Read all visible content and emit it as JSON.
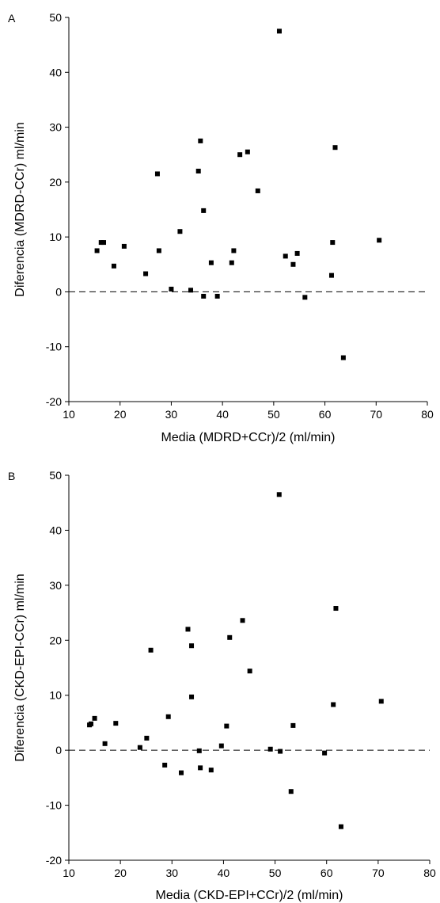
{
  "chart_data": [
    {
      "type": "scatter",
      "panel_letter": "A",
      "xlabel": "Media (MDRD+CCr)/2 (ml/min)",
      "ylabel": "Diferencia (MDRD-CCr) ml/min",
      "xlim": [
        10,
        80
      ],
      "ylim": [
        -20,
        50
      ],
      "x_ticks": [
        "10",
        "20",
        "30",
        "40",
        "50",
        "60",
        "70",
        "80"
      ],
      "y_ticks": [
        "-20",
        "-10",
        "0",
        "10",
        "20",
        "30",
        "40",
        "50"
      ],
      "reference_line": {
        "y": 0,
        "style": "dashed"
      },
      "marker_color": "#000000",
      "points": [
        [
          15.5,
          7.5
        ],
        [
          16.3,
          9.0
        ],
        [
          16.8,
          9.0
        ],
        [
          18.8,
          4.7
        ],
        [
          20.8,
          8.3
        ],
        [
          25.0,
          3.3
        ],
        [
          27.3,
          21.5
        ],
        [
          27.6,
          7.5
        ],
        [
          30.0,
          0.5
        ],
        [
          31.7,
          11.0
        ],
        [
          33.8,
          0.3
        ],
        [
          35.3,
          22.0
        ],
        [
          35.7,
          27.5
        ],
        [
          36.3,
          14.8
        ],
        [
          36.3,
          -0.8
        ],
        [
          37.8,
          5.3
        ],
        [
          39.0,
          -0.8
        ],
        [
          41.8,
          5.3
        ],
        [
          42.2,
          7.5
        ],
        [
          43.4,
          25.0
        ],
        [
          44.9,
          25.5
        ],
        [
          46.9,
          18.4
        ],
        [
          51.1,
          47.5
        ],
        [
          52.3,
          6.5
        ],
        [
          53.8,
          5.0
        ],
        [
          54.6,
          7.0
        ],
        [
          56.1,
          -1.0
        ],
        [
          61.3,
          3.0
        ],
        [
          61.5,
          9.0
        ],
        [
          62.0,
          26.3
        ],
        [
          63.6,
          -12.0
        ],
        [
          70.6,
          9.4
        ]
      ]
    },
    {
      "type": "scatter",
      "panel_letter": "B",
      "xlabel": "Media (CKD-EPI+CCr)/2 (ml/min)",
      "ylabel": "Diferencia (CKD-EPI-CCr) ml/min",
      "xlim": [
        10,
        80
      ],
      "ylim": [
        -20,
        50
      ],
      "x_ticks": [
        "10",
        "20",
        "30",
        "40",
        "50",
        "60",
        "70",
        "80"
      ],
      "y_ticks": [
        "-20",
        "-10",
        "0",
        "10",
        "20",
        "30",
        "40",
        "50"
      ],
      "reference_line": {
        "y": 0,
        "style": "dashed"
      },
      "marker_color": "#000000",
      "points": [
        [
          14.0,
          4.6
        ],
        [
          14.3,
          4.8
        ],
        [
          15.0,
          5.8
        ],
        [
          17.0,
          1.2
        ],
        [
          19.1,
          4.9
        ],
        [
          23.8,
          0.5
        ],
        [
          25.1,
          2.2
        ],
        [
          25.9,
          18.2
        ],
        [
          28.6,
          -2.7
        ],
        [
          29.3,
          6.1
        ],
        [
          31.8,
          -4.1
        ],
        [
          33.1,
          22.0
        ],
        [
          33.8,
          19.0
        ],
        [
          33.8,
          9.7
        ],
        [
          35.3,
          -0.1
        ],
        [
          35.5,
          -3.2
        ],
        [
          37.6,
          -3.6
        ],
        [
          39.6,
          0.8
        ],
        [
          40.6,
          4.4
        ],
        [
          41.2,
          20.5
        ],
        [
          43.7,
          23.6
        ],
        [
          45.1,
          14.4
        ],
        [
          49.1,
          0.2
        ],
        [
          50.8,
          46.5
        ],
        [
          51.0,
          -0.2
        ],
        [
          53.1,
          -7.5
        ],
        [
          53.5,
          4.5
        ],
        [
          59.6,
          -0.5
        ],
        [
          61.3,
          8.3
        ],
        [
          61.8,
          25.8
        ],
        [
          62.8,
          -13.9
        ],
        [
          70.6,
          8.9
        ]
      ]
    }
  ]
}
